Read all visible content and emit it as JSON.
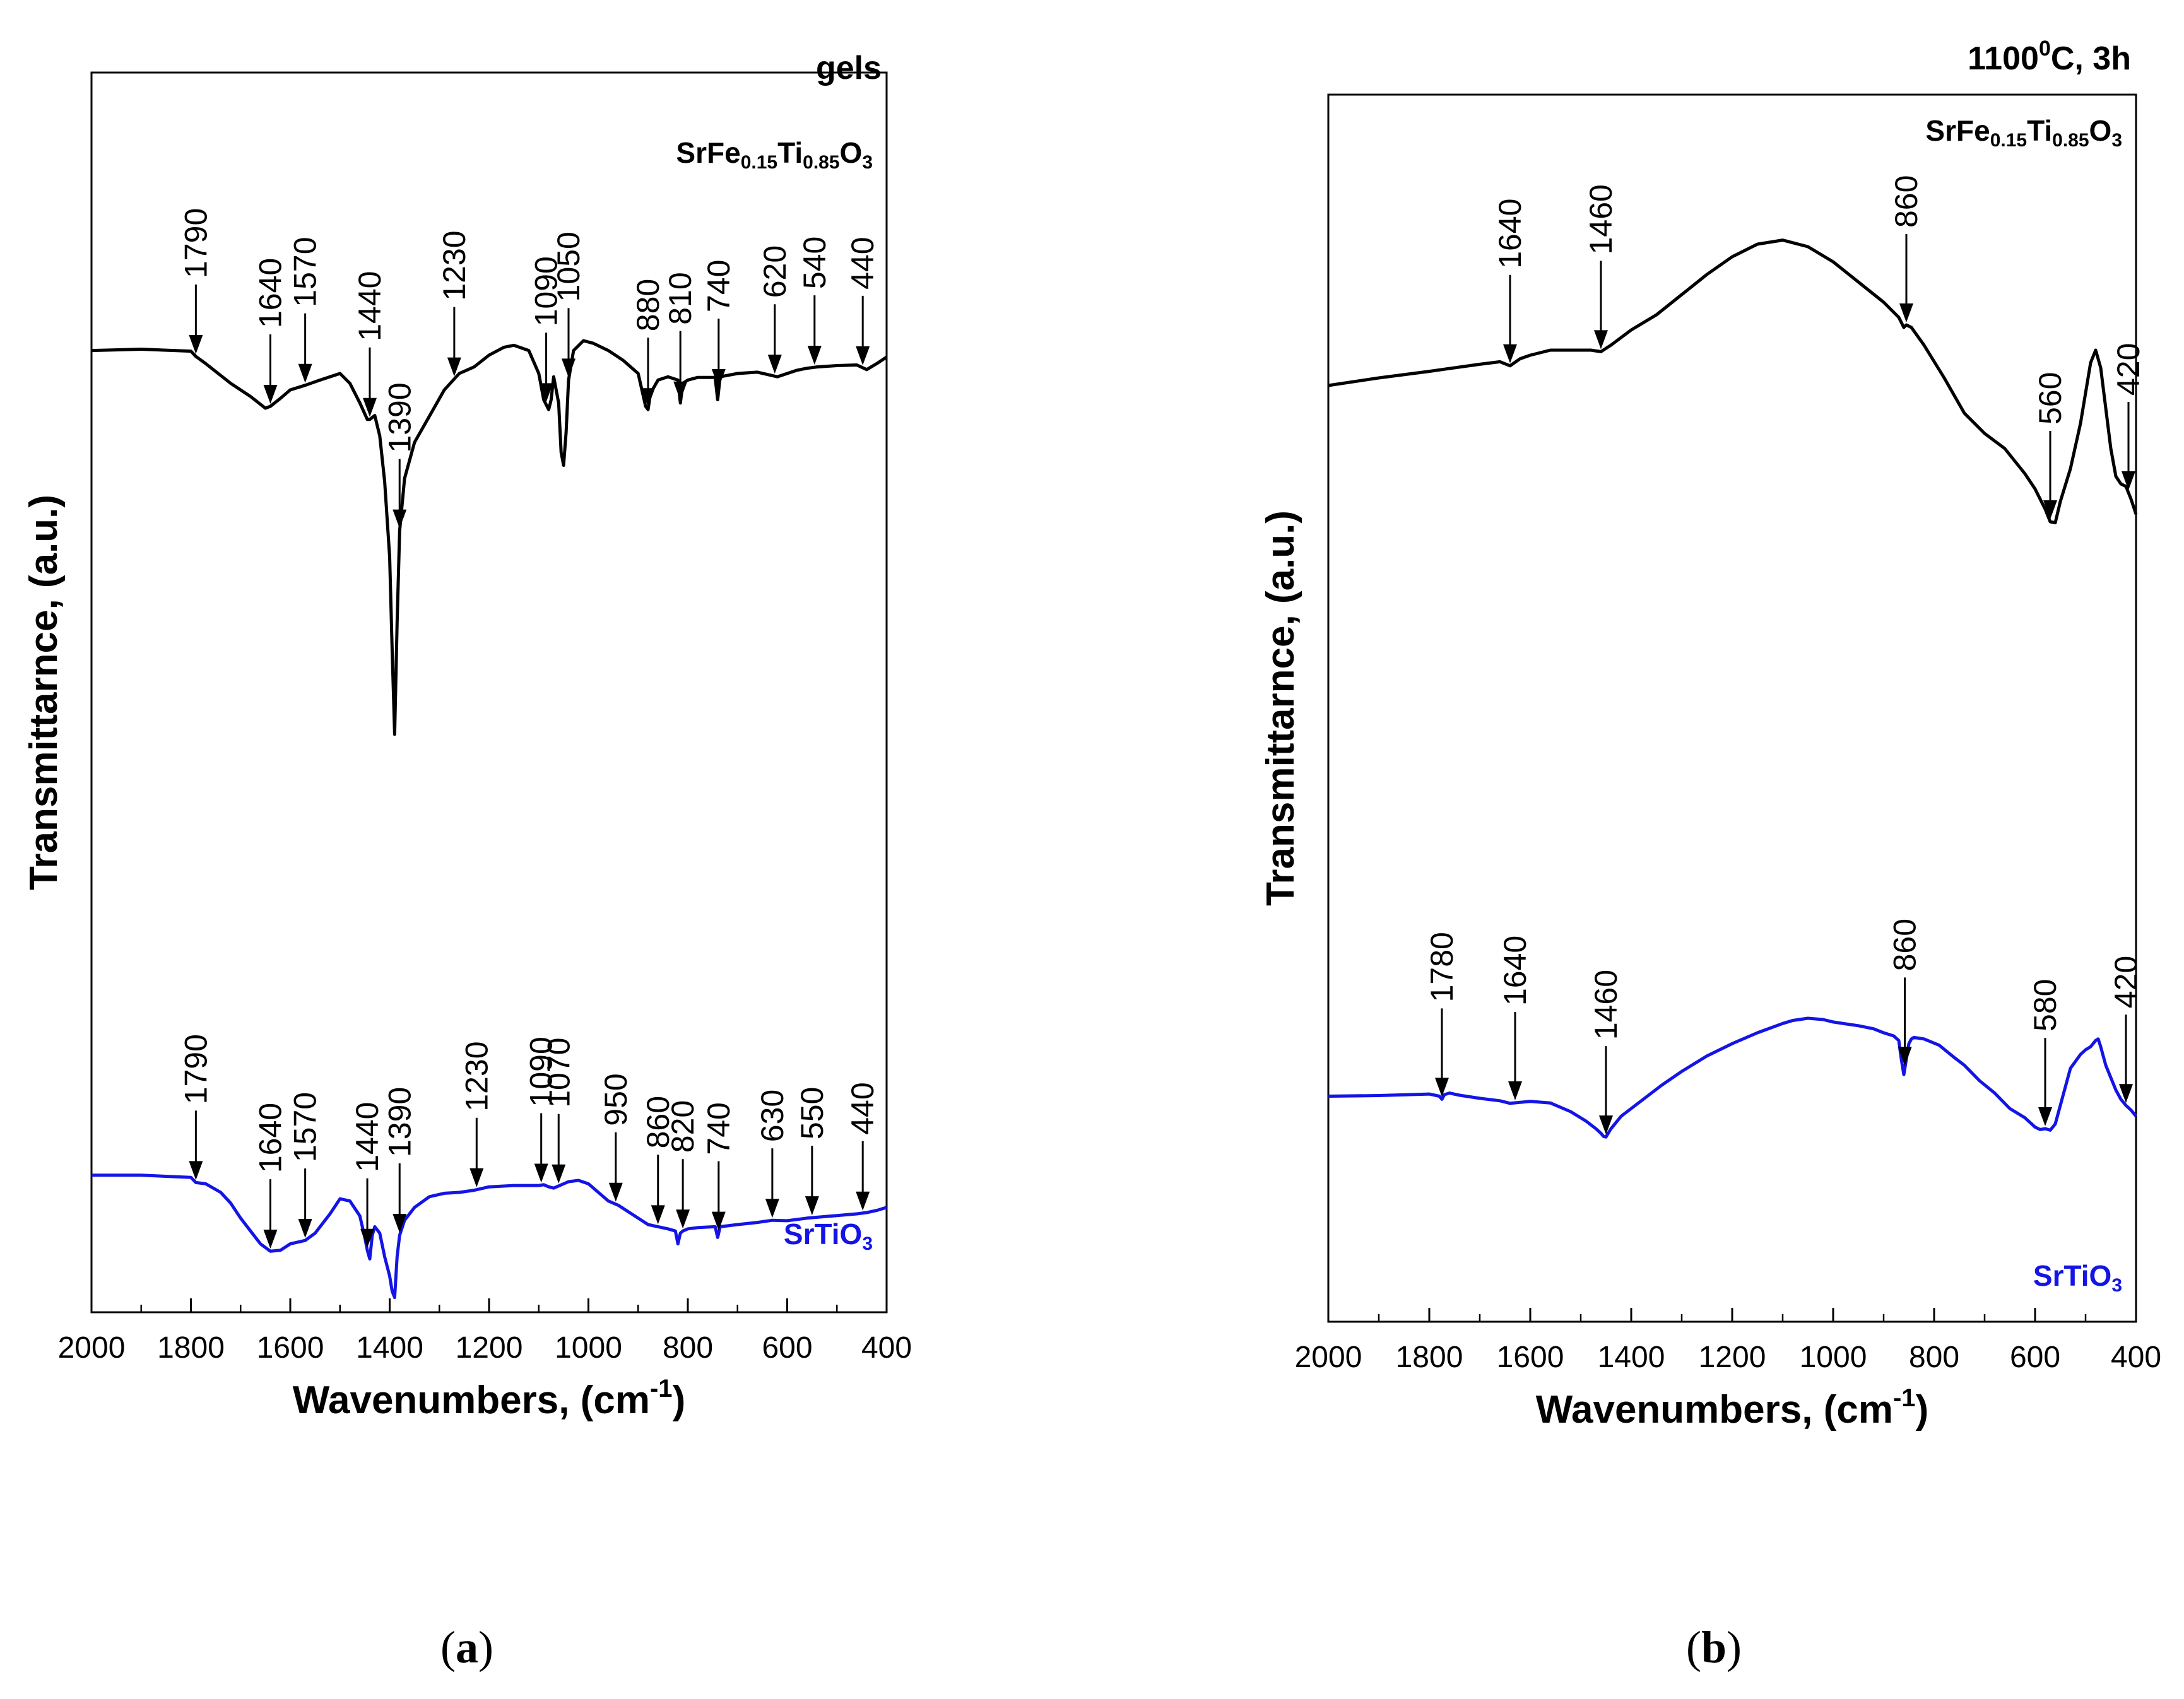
{
  "colors": {
    "black": "#000000",
    "blue": "#1414e6"
  },
  "chart_data": [
    {
      "type": "line",
      "panel_label": "(a)",
      "title": "gels",
      "xlabel": "Wavenumbers, (cm",
      "xlabel_sup": "-1",
      "xlabel_end": ")",
      "ylabel": "Transmittarnce, (a.u.)",
      "xlim": [
        2000,
        400
      ],
      "ylim": [
        0,
        100
      ],
      "x_ticks": [
        "2000",
        "1800",
        "1600",
        "1400",
        "1200",
        "1000",
        "800",
        "600",
        "400"
      ],
      "series": [
        {
          "name": "SrFe0.15Ti0.85O3",
          "label_parts": [
            [
              "SrFe",
              ""
            ],
            [
              "0.15",
              "sub"
            ],
            [
              "Ti",
              ""
            ],
            [
              "0.85",
              "sub"
            ],
            [
              "O",
              ""
            ],
            [
              "3",
              "sub"
            ]
          ],
          "color": "#000000",
          "x": [
            2000,
            1900,
            1800,
            1790,
            1770,
            1720,
            1680,
            1650,
            1640,
            1620,
            1600,
            1570,
            1540,
            1500,
            1480,
            1460,
            1445,
            1440,
            1430,
            1420,
            1410,
            1400,
            1395,
            1390,
            1385,
            1380,
            1370,
            1350,
            1320,
            1290,
            1260,
            1230,
            1200,
            1170,
            1150,
            1120,
            1100,
            1090,
            1080,
            1075,
            1070,
            1060,
            1055,
            1050,
            1045,
            1040,
            1030,
            1010,
            990,
            960,
            930,
            900,
            885,
            880,
            875,
            860,
            840,
            820,
            815,
            810,
            800,
            780,
            745,
            740,
            735,
            700,
            660,
            620,
            600,
            580,
            560,
            540,
            500,
            460,
            440,
            420,
            400
          ],
          "values": [
            73.5,
            73.7,
            73.4,
            72.6,
            71.5,
            68.5,
            66.5,
            64.7,
            65.0,
            66.2,
            67.5,
            68.2,
            69.0,
            70.0,
            68.5,
            65.5,
            63.0,
            63.0,
            63.6,
            60.5,
            53.5,
            42.0,
            28.0,
            15.0,
            32.0,
            46.0,
            54.0,
            59.5,
            63.5,
            67.5,
            70.0,
            71.0,
            72.8,
            74.0,
            74.3,
            73.5,
            70.0,
            66.0,
            64.5,
            66.0,
            69.5,
            65.5,
            58.0,
            56.0,
            61.0,
            69.0,
            73.5,
            75.0,
            74.6,
            73.5,
            72.0,
            70.0,
            65.0,
            64.5,
            67.0,
            69.0,
            69.5,
            69.0,
            65.5,
            68.5,
            69.0,
            69.4,
            69.4,
            66.0,
            69.5,
            70.0,
            70.2,
            69.5,
            70.0,
            70.5,
            70.8,
            71.0,
            71.2,
            71.3,
            70.6,
            71.5,
            72.5
          ]
        },
        {
          "name": "SrTiO3",
          "label_parts": [
            [
              "SrTiO",
              ""
            ],
            [
              "3",
              "sub"
            ]
          ],
          "color": "#1414e6",
          "x": [
            2000,
            1900,
            1800,
            1790,
            1770,
            1740,
            1720,
            1700,
            1680,
            1660,
            1640,
            1620,
            1600,
            1570,
            1550,
            1520,
            1500,
            1480,
            1460,
            1450,
            1445,
            1440,
            1435,
            1430,
            1420,
            1410,
            1400,
            1395,
            1390,
            1385,
            1380,
            1370,
            1350,
            1320,
            1290,
            1260,
            1230,
            1200,
            1150,
            1100,
            1090,
            1080,
            1070,
            1060,
            1040,
            1020,
            1000,
            980,
            960,
            940,
            900,
            880,
            860,
            840,
            825,
            820,
            815,
            810,
            800,
            780,
            745,
            740,
            735,
            700,
            660,
            630,
            600,
            560,
            540,
            500,
            460,
            440,
            420,
            400
          ],
          "values": [
            29.0,
            29.0,
            28.5,
            27.3,
            27.0,
            25.0,
            22.5,
            19.0,
            16.0,
            13.0,
            11.3,
            11.5,
            13.0,
            13.8,
            15.5,
            20.0,
            23.5,
            23.0,
            19.5,
            14.5,
            11.5,
            9.5,
            15.0,
            17.0,
            15.5,
            10.0,
            5.5,
            2.0,
            0.5,
            10.0,
            15.0,
            18.5,
            21.5,
            24.0,
            24.8,
            25.0,
            25.5,
            26.3,
            26.6,
            26.6,
            26.8,
            26.3,
            26.0,
            26.5,
            27.5,
            27.8,
            27.0,
            25.0,
            23.0,
            22.0,
            19.0,
            17.5,
            17.0,
            16.5,
            16.0,
            13.0,
            15.5,
            16.0,
            16.5,
            16.8,
            17.0,
            14.5,
            17.0,
            17.5,
            18.0,
            18.5,
            18.4,
            19.0,
            19.2,
            19.6,
            20.0,
            20.3,
            20.8,
            21.5
          ]
        }
      ],
      "annotations": [
        {
          "label": "1790",
          "x": 1790,
          "series": 0
        },
        {
          "label": "1640",
          "x": 1640,
          "series": 0
        },
        {
          "label": "1570",
          "x": 1570,
          "series": 0
        },
        {
          "label": "1440",
          "x": 1440,
          "series": 0
        },
        {
          "label": "1390",
          "x": 1380,
          "series": 0
        },
        {
          "label": "1230",
          "x": 1270,
          "series": 0
        },
        {
          "label": "1090",
          "x": 1085,
          "series": 0
        },
        {
          "label": "1050",
          "x": 1040,
          "series": 0
        },
        {
          "label": "880",
          "x": 880,
          "series": 0
        },
        {
          "label": "810",
          "x": 815,
          "series": 0
        },
        {
          "label": "740",
          "x": 738,
          "series": 0
        },
        {
          "label": "620",
          "x": 625,
          "series": 0
        },
        {
          "label": "540",
          "x": 545,
          "series": 0
        },
        {
          "label": "440",
          "x": 448,
          "series": 0
        },
        {
          "label": "1790",
          "x": 1790,
          "series": 1
        },
        {
          "label": "1640",
          "x": 1640,
          "series": 1
        },
        {
          "label": "1570",
          "x": 1570,
          "series": 1
        },
        {
          "label": "1440",
          "x": 1445,
          "series": 1
        },
        {
          "label": "1390",
          "x": 1380,
          "series": 1
        },
        {
          "label": "1230",
          "x": 1225,
          "series": 1
        },
        {
          "label": "1090",
          "x": 1095,
          "series": 1
        },
        {
          "label": "1070",
          "x": 1060,
          "series": 1
        },
        {
          "label": "950",
          "x": 945,
          "series": 1
        },
        {
          "label": "860",
          "x": 860,
          "series": 1
        },
        {
          "label": "820",
          "x": 810,
          "series": 1
        },
        {
          "label": "740",
          "x": 738,
          "series": 1
        },
        {
          "label": "630",
          "x": 630,
          "series": 1
        },
        {
          "label": "550",
          "x": 550,
          "series": 1
        },
        {
          "label": "440",
          "x": 448,
          "series": 1
        }
      ]
    },
    {
      "type": "line",
      "panel_label": "(b)",
      "title": "1100",
      "title_sup": "0",
      "title_end": "C, 3h",
      "xlabel": "Wavenumbers, (cm",
      "xlabel_sup": "-1",
      "xlabel_end": ")",
      "ylabel": "Transmittarnce, (a.u.)",
      "xlim": [
        2000,
        400
      ],
      "ylim": [
        0,
        100
      ],
      "x_ticks": [
        "2000",
        "1800",
        "1600",
        "1400",
        "1200",
        "1000",
        "800",
        "600",
        "400"
      ],
      "series": [
        {
          "name": "SrFe0.15Ti0.85O3",
          "label_parts": [
            [
              "SrFe",
              ""
            ],
            [
              "0.15",
              "sub"
            ],
            [
              "Ti",
              ""
            ],
            [
              "0.85",
              "sub"
            ],
            [
              "O",
              ""
            ],
            [
              "3",
              "sub"
            ]
          ],
          "color": "#000000",
          "x": [
            2000,
            1900,
            1800,
            1700,
            1660,
            1640,
            1620,
            1600,
            1560,
            1520,
            1480,
            1460,
            1440,
            1400,
            1350,
            1300,
            1250,
            1200,
            1150,
            1100,
            1050,
            1000,
            950,
            900,
            870,
            860,
            855,
            845,
            820,
            780,
            740,
            700,
            660,
            620,
            600,
            580,
            570,
            560,
            550,
            530,
            510,
            490,
            480,
            470,
            460,
            450,
            440,
            430,
            420,
            410,
            400
          ],
          "values": [
            65.5,
            67.0,
            68.3,
            69.7,
            70.2,
            69.4,
            70.8,
            71.5,
            72.5,
            72.5,
            72.5,
            72.2,
            73.5,
            76.5,
            79.5,
            83.5,
            87.5,
            91.0,
            93.5,
            94.3,
            93.0,
            90.0,
            86.0,
            82.0,
            79.0,
            77.0,
            77.5,
            77.0,
            73.5,
            67.0,
            60.0,
            56.0,
            53.0,
            48.0,
            45.0,
            41.0,
            38.5,
            38.3,
            42.5,
            49.0,
            58.0,
            70.0,
            72.5,
            69.0,
            61.0,
            53.0,
            47.5,
            46.0,
            45.5,
            43.0,
            40.0
          ]
        },
        {
          "name": "SrTiO3",
          "label_parts": [
            [
              "SrTiO",
              ""
            ],
            [
              "3",
              "sub"
            ]
          ],
          "color": "#1414e6",
          "x": [
            2000,
            1900,
            1800,
            1780,
            1775,
            1770,
            1760,
            1740,
            1700,
            1660,
            1640,
            1620,
            1600,
            1560,
            1520,
            1490,
            1470,
            1460,
            1455,
            1450,
            1440,
            1420,
            1380,
            1340,
            1300,
            1250,
            1200,
            1150,
            1100,
            1080,
            1050,
            1020,
            1000,
            980,
            950,
            920,
            900,
            880,
            870,
            865,
            860,
            855,
            850,
            845,
            840,
            820,
            790,
            760,
            740,
            710,
            680,
            650,
            620,
            600,
            590,
            580,
            570,
            560,
            550,
            530,
            510,
            500,
            490,
            480,
            475,
            470,
            460,
            440,
            430,
            420,
            410,
            400
          ],
          "values": [
            25.0,
            25.2,
            25.7,
            25.0,
            24.0,
            25.5,
            26.0,
            25.3,
            24.3,
            23.5,
            22.7,
            23.0,
            23.3,
            22.8,
            20.0,
            17.0,
            14.5,
            13.0,
            12.0,
            11.8,
            14.5,
            18.5,
            23.5,
            28.5,
            33.0,
            38.0,
            42.0,
            45.5,
            48.5,
            49.5,
            50.2,
            49.8,
            49.0,
            48.5,
            47.8,
            46.8,
            45.5,
            44.5,
            43.0,
            37.0,
            32.0,
            37.0,
            42.0,
            43.5,
            44.0,
            43.5,
            41.5,
            37.5,
            35.0,
            30.0,
            26.0,
            21.0,
            18.0,
            15.0,
            14.2,
            14.5,
            14.0,
            16.0,
            22.0,
            34.0,
            38.5,
            40.0,
            41.0,
            43.0,
            43.5,
            41.0,
            35.0,
            27.0,
            24.0,
            22.0,
            20.5,
            18.5
          ]
        }
      ],
      "annotations": [
        {
          "label": "1640",
          "x": 1640,
          "series": 0
        },
        {
          "label": "1460",
          "x": 1460,
          "series": 0
        },
        {
          "label": "860",
          "x": 855,
          "series": 0
        },
        {
          "label": "560",
          "x": 570,
          "series": 0
        },
        {
          "label": "420",
          "x": 415,
          "series": 0
        },
        {
          "label": "1780",
          "x": 1775,
          "series": 1
        },
        {
          "label": "1640",
          "x": 1630,
          "series": 1
        },
        {
          "label": "1460",
          "x": 1450,
          "series": 1
        },
        {
          "label": "860",
          "x": 858,
          "series": 1
        },
        {
          "label": "580",
          "x": 580,
          "series": 1
        },
        {
          "label": "420",
          "x": 420,
          "series": 1
        }
      ]
    }
  ]
}
